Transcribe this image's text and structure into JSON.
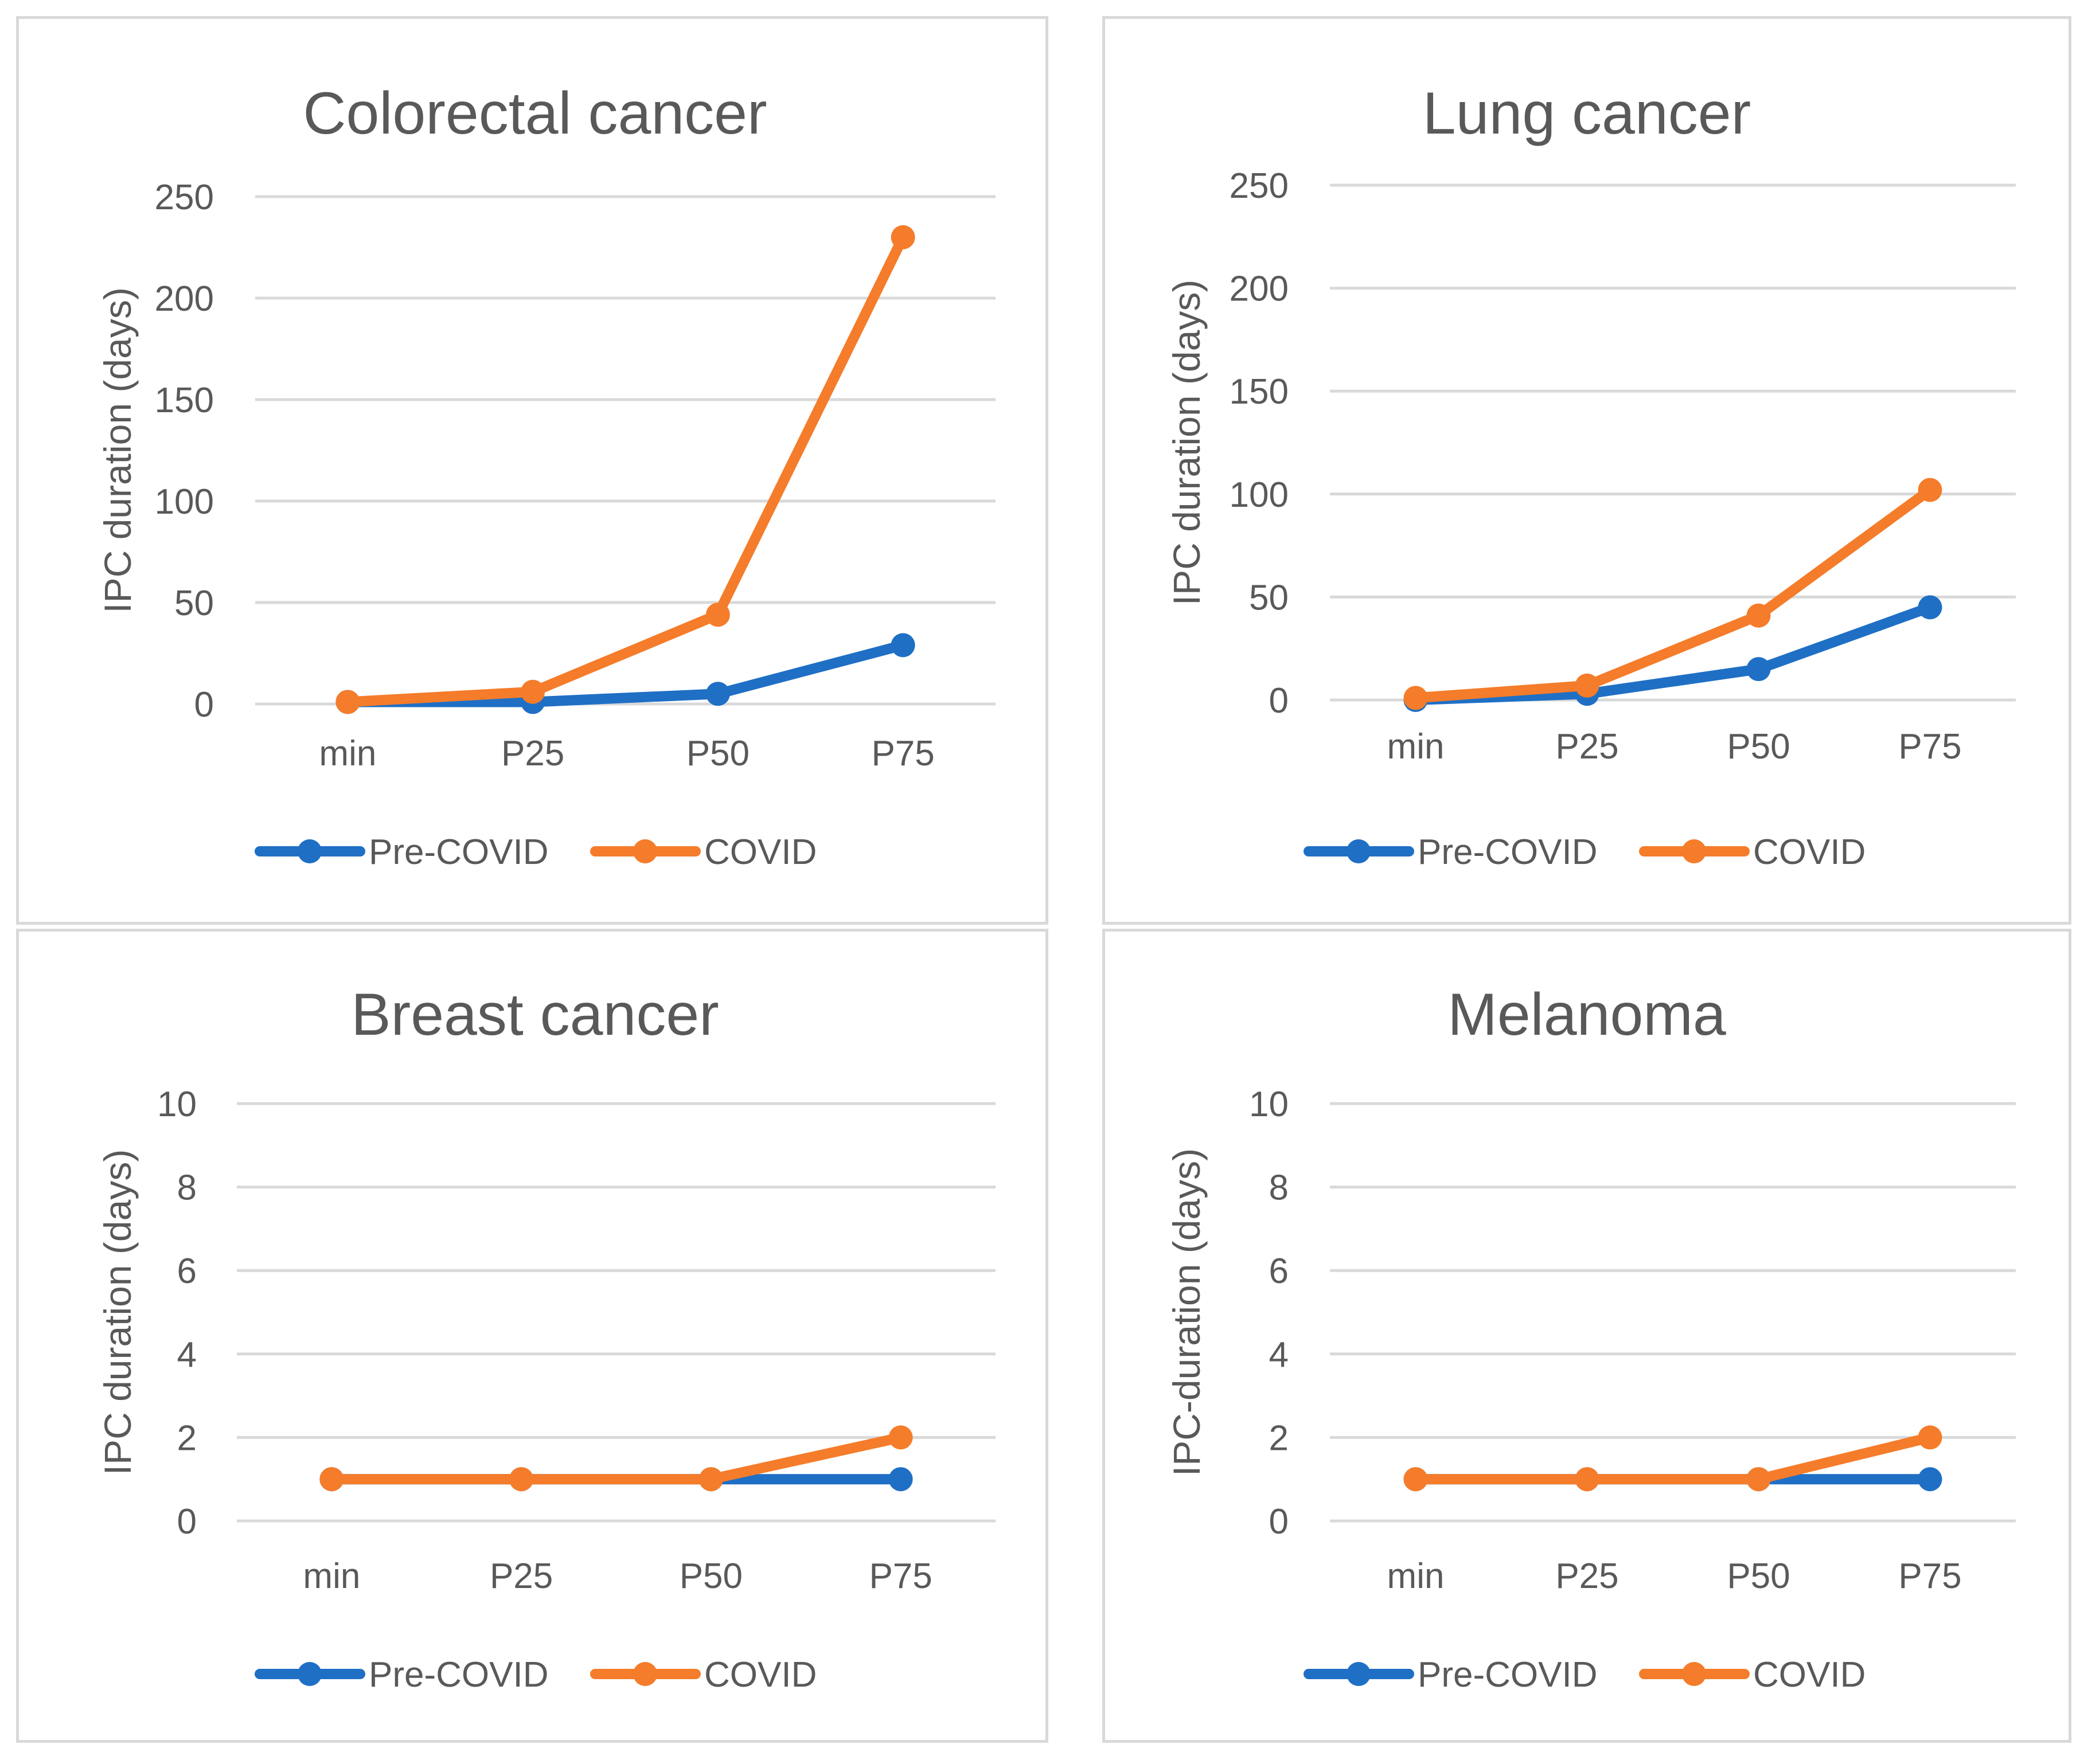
{
  "colors": {
    "pre_covid": "#1f6fc5",
    "covid": "#f57c2a",
    "grid": "#d9d9d9",
    "text": "#595959"
  },
  "chart_data": [
    {
      "type": "line",
      "title": "Colorectal cancer",
      "xlabel": "",
      "ylabel": "IPC duration (days)",
      "categories": [
        "min",
        "P25",
        "P50",
        "P75"
      ],
      "ylim": [
        0,
        250
      ],
      "yticks": [
        0,
        50,
        100,
        150,
        200,
        250
      ],
      "series": [
        {
          "name": "Pre-COVID",
          "color": "#1f6fc5",
          "values": [
            1,
            1,
            5,
            29
          ]
        },
        {
          "name": "COVID",
          "color": "#f57c2a",
          "values": [
            1,
            6,
            44,
            230
          ]
        }
      ],
      "legend": [
        "Pre-COVID",
        "COVID"
      ],
      "legend_position": "bottom",
      "grid": true
    },
    {
      "type": "line",
      "title": "Lung cancer",
      "xlabel": "",
      "ylabel": "IPC duration (days)",
      "categories": [
        "min",
        "P25",
        "P50",
        "P75"
      ],
      "ylim": [
        0,
        250
      ],
      "yticks": [
        0,
        50,
        100,
        150,
        200,
        250
      ],
      "series": [
        {
          "name": "Pre-COVID",
          "color": "#1f6fc5",
          "values": [
            0,
            3,
            15,
            45
          ]
        },
        {
          "name": "COVID",
          "color": "#f57c2a",
          "values": [
            1,
            7,
            41,
            102
          ]
        }
      ],
      "legend": [
        "Pre-COVID",
        "COVID"
      ],
      "legend_position": "bottom",
      "grid": true
    },
    {
      "type": "line",
      "title": "Breast cancer",
      "xlabel": "",
      "ylabel": "IPC duration (days)",
      "categories": [
        "min",
        "P25",
        "P50",
        "P75"
      ],
      "ylim": [
        0,
        10
      ],
      "yticks": [
        0,
        2,
        4,
        6,
        8,
        10
      ],
      "series": [
        {
          "name": "Pre-COVID",
          "color": "#1f6fc5",
          "values": [
            1,
            1,
            1,
            1
          ]
        },
        {
          "name": "COVID",
          "color": "#f57c2a",
          "values": [
            1,
            1,
            1,
            2
          ]
        }
      ],
      "legend": [
        "Pre-COVID",
        "COVID"
      ],
      "legend_position": "bottom",
      "grid": true
    },
    {
      "type": "line",
      "title": "Melanoma",
      "xlabel": "",
      "ylabel": "IPC-duration (days)",
      "categories": [
        "min",
        "P25",
        "P50",
        "P75"
      ],
      "ylim": [
        0,
        10
      ],
      "yticks": [
        0,
        2,
        4,
        6,
        8,
        10
      ],
      "series": [
        {
          "name": "Pre-COVID",
          "color": "#1f6fc5",
          "values": [
            1,
            1,
            1,
            1
          ]
        },
        {
          "name": "COVID",
          "color": "#f57c2a",
          "values": [
            1,
            1,
            1,
            2
          ]
        }
      ],
      "legend": [
        "Pre-COVID",
        "COVID"
      ],
      "legend_position": "bottom",
      "grid": true
    }
  ]
}
